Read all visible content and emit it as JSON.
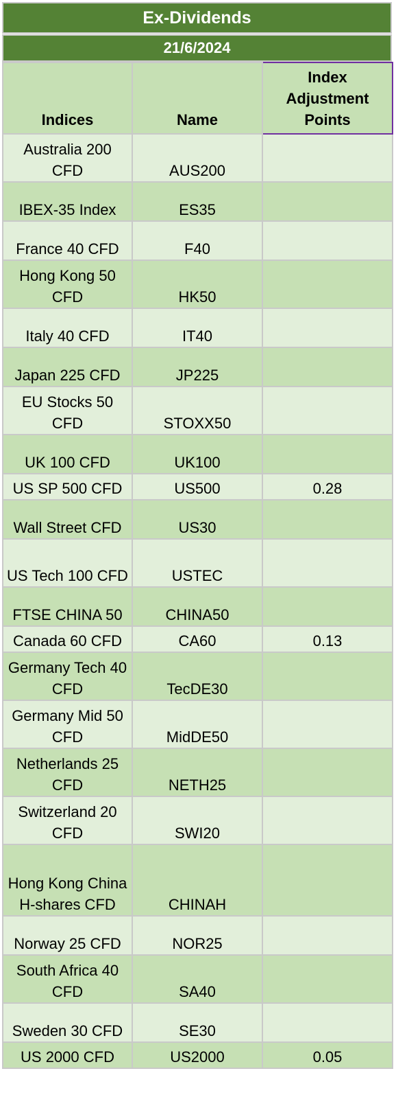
{
  "title": "Ex-Dividends",
  "date": "21/6/2024",
  "columns": {
    "indices": "Indices",
    "name": "Name",
    "points": "Index Adjustment Points"
  },
  "rows": [
    {
      "index": "Australia 200 CFD",
      "name": "AUS200",
      "points": ""
    },
    {
      "index": "IBEX-35 Index",
      "name": "ES35",
      "points": ""
    },
    {
      "index": "France 40 CFD",
      "name": "F40",
      "points": ""
    },
    {
      "index": "Hong Kong 50 CFD",
      "name": "HK50",
      "points": ""
    },
    {
      "index": "Italy 40 CFD",
      "name": "IT40",
      "points": ""
    },
    {
      "index": "Japan 225 CFD",
      "name": "JP225",
      "points": ""
    },
    {
      "index": "EU Stocks 50 CFD",
      "name": "STOXX50",
      "points": ""
    },
    {
      "index": "UK 100 CFD",
      "name": "UK100",
      "points": ""
    },
    {
      "index": "US SP 500 CFD",
      "name": "US500",
      "points": "0.28"
    },
    {
      "index": "Wall Street CFD",
      "name": "US30",
      "points": ""
    },
    {
      "index": "US Tech 100 CFD",
      "name": "USTEC",
      "points": ""
    },
    {
      "index": "FTSE CHINA 50",
      "name": "CHINA50",
      "points": ""
    },
    {
      "index": "Canada 60 CFD",
      "name": "CA60",
      "points": "0.13"
    },
    {
      "index": "Germany Tech 40 CFD",
      "name": "TecDE30",
      "points": ""
    },
    {
      "index": "Germany Mid 50 CFD",
      "name": "MidDE50",
      "points": ""
    },
    {
      "index": "Netherlands 25 CFD",
      "name": "NETH25",
      "points": ""
    },
    {
      "index": "Switzerland 20 CFD",
      "name": "SWI20",
      "points": ""
    },
    {
      "index": "Hong Kong China H-shares CFD",
      "name": "CHINAH",
      "points": ""
    },
    {
      "index": "Norway 25 CFD",
      "name": "NOR25",
      "points": ""
    },
    {
      "index": "South Africa 40 CFD",
      "name": "SA40",
      "points": ""
    },
    {
      "index": "Sweden 30 CFD",
      "name": "SE30",
      "points": ""
    },
    {
      "index": "US 2000 CFD",
      "name": "US2000",
      "points": "0.05"
    }
  ]
}
